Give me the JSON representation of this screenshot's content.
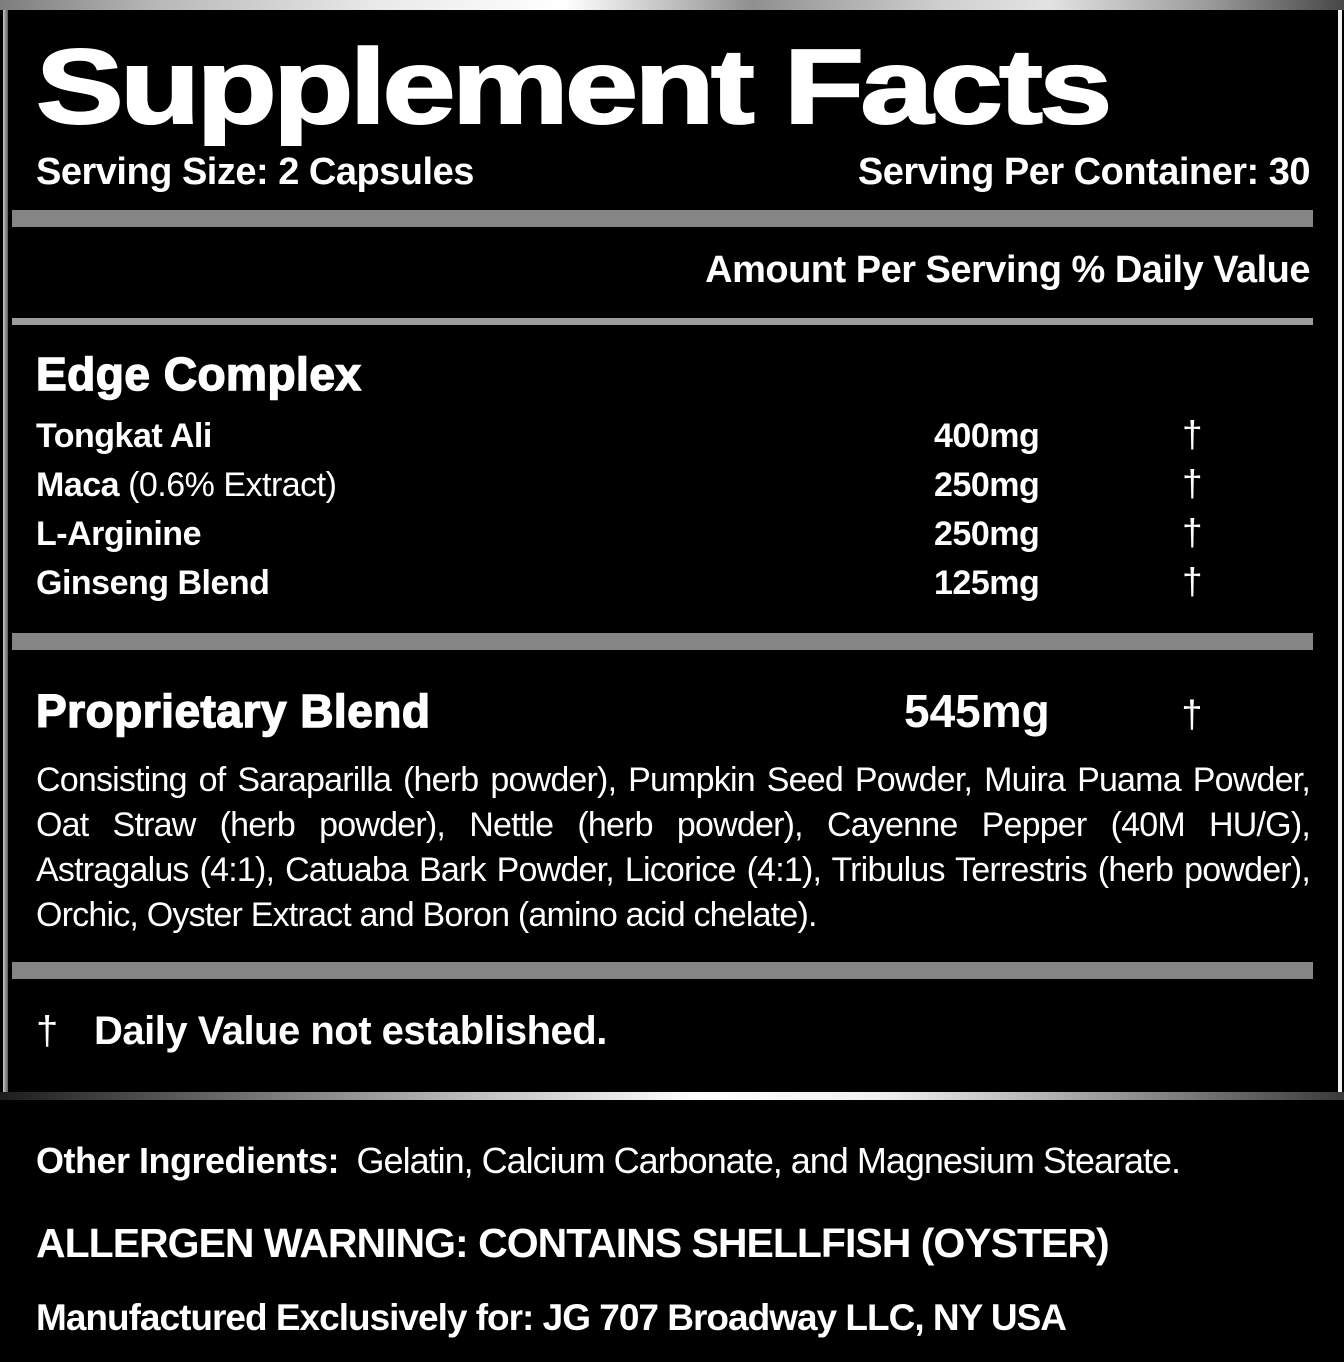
{
  "title": "Supplement Facts",
  "serving": {
    "size": "Serving Size: 2 Capsules",
    "per_container": "Serving Per Container: 30"
  },
  "columns_header": "Amount Per Serving % Daily Value",
  "edge_complex": {
    "heading": "Edge Complex",
    "rows": [
      {
        "name": "Tongkat Ali",
        "detail": "",
        "amount": "400mg",
        "dv": "†"
      },
      {
        "name": "Maca",
        "detail": "(0.6% Extract)",
        "amount": "250mg",
        "dv": "†"
      },
      {
        "name": "L-Arginine",
        "detail": "",
        "amount": "250mg",
        "dv": "†"
      },
      {
        "name": "Ginseng Blend",
        "detail": "",
        "amount": "125mg",
        "dv": "†"
      }
    ]
  },
  "proprietary_blend": {
    "heading": "Proprietary Blend",
    "amount": "545mg",
    "dv": "†",
    "description": "Consisting of Saraparilla (herb powder), Pumpkin Seed Powder, Muira Puama Powder, Oat Straw (herb powder), Nettle (herb powder), Cayenne Pepper (40M HU/G), Astragalus (4:1), Catuaba Bark Powder, Licorice (4:1), Tribulus Terrestris (herb powder), Orchic, Oyster Extract and Boron (amino acid chelate)."
  },
  "footnote": {
    "symbol": "†",
    "text": "Daily Value not established."
  },
  "other_ingredients": {
    "label": "Other Ingredients:",
    "value": "Gelatin, Calcium Carbonate, and Magnesium Stearate."
  },
  "allergen_warning": "ALLERGEN WARNING: CONTAINS SHELLFISH (OYSTER)",
  "manufactured_for": "Manufactured Exclusively for: JG 707 Broadway LLC, NY USA",
  "colors": {
    "background": "#000000",
    "text": "#ffffff",
    "divider_thick": "#858585",
    "divider_thin": "#9c9c9c",
    "metal_border_highlight": "#ffffff",
    "metal_border_shadow": "#474747"
  }
}
